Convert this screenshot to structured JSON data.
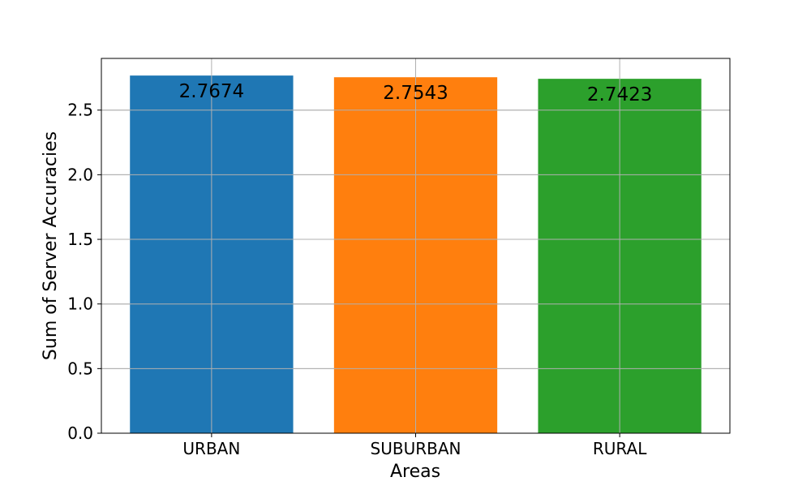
{
  "chart_data": {
    "type": "bar",
    "title": "",
    "xlabel": "Areas",
    "ylabel": "Sum of Server Accuracies",
    "categories": [
      "URBAN",
      "SUBURBAN",
      "RURAL"
    ],
    "values": [
      2.7674,
      2.7543,
      2.7423
    ],
    "value_labels": [
      "2.7674",
      "2.7543",
      "2.7423"
    ],
    "colors": [
      "#1f77b4",
      "#ff7f0e",
      "#2ca02c"
    ],
    "ylim": [
      0,
      2.9
    ],
    "yticks": [
      0.0,
      0.5,
      1.0,
      1.5,
      2.0,
      2.5
    ],
    "ytick_labels": [
      "0.0",
      "0.5",
      "1.0",
      "1.5",
      "2.0",
      "2.5"
    ],
    "grid": true,
    "legend": "none"
  }
}
